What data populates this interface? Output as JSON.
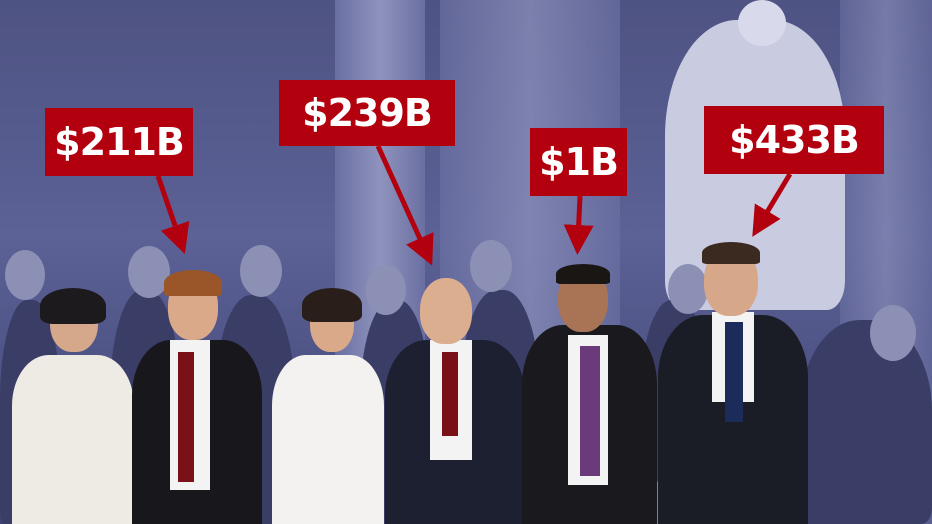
{
  "labels": [
    {
      "text": "$211B",
      "color": "#b3000f"
    },
    {
      "text": "$239B",
      "color": "#b3000f"
    },
    {
      "text": "$1B",
      "color": "#b3000f"
    },
    {
      "text": "$433B",
      "color": "#b3000f"
    }
  ],
  "colors": {
    "tint": "#5c6196",
    "label_bg": "#b3000f",
    "label_text": "#ffffff"
  }
}
